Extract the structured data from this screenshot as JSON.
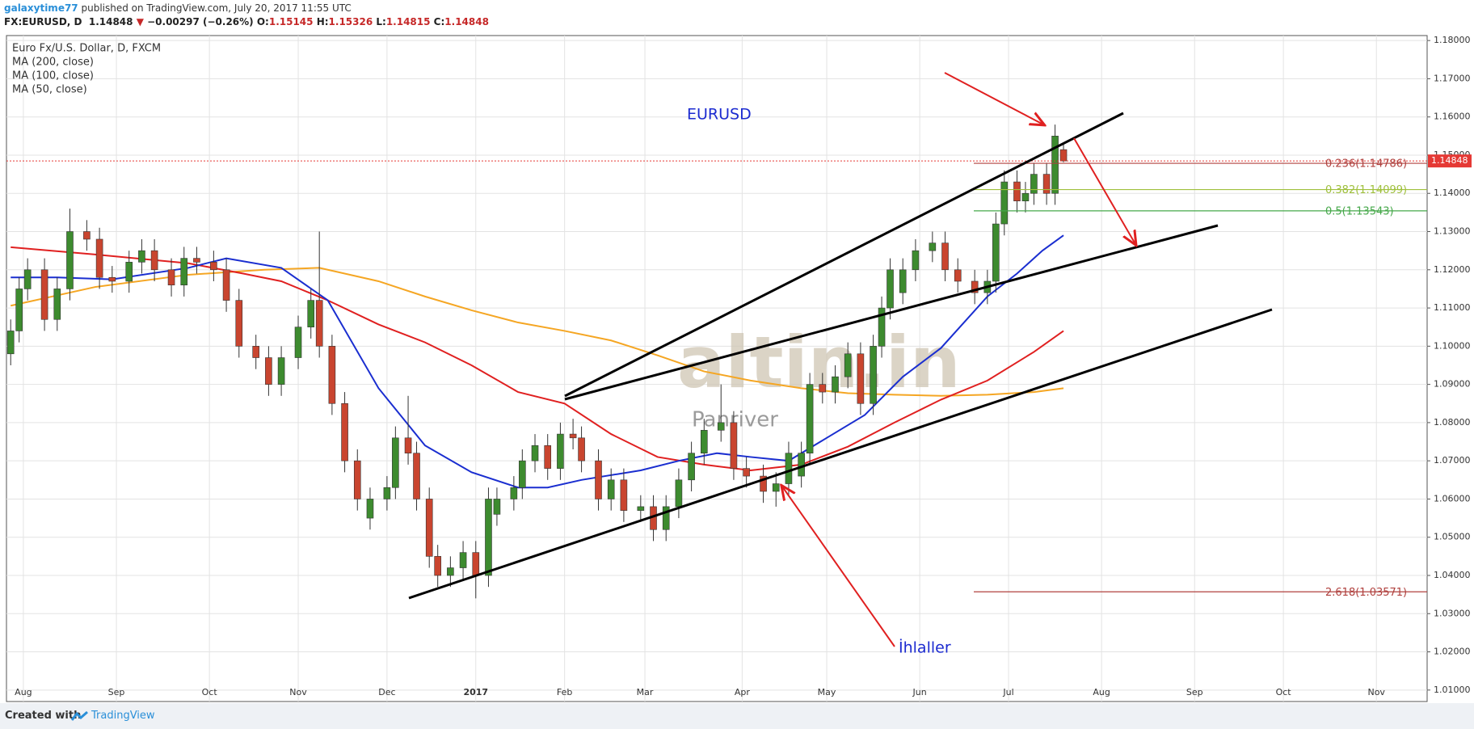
{
  "header": {
    "user": "galaxytime77",
    "published": "published on TradingView.com, July 20, 2017 11:55 UTC",
    "symbol": "FX:EURUSD, D",
    "price": "1.14848",
    "direction": "▼",
    "change": "−0.00297 (−0.26%)",
    "o_label": "O:",
    "o": "1.15145",
    "h_label": "H:",
    "h": "1.15326",
    "l_label": "L:",
    "l": "1.14815",
    "c_label": "C:",
    "c": "1.14848"
  },
  "footer": {
    "created_with": "Created with",
    "brand": "TradingView"
  },
  "chart_data": {
    "type": "candlestick",
    "title": "Euro Fx/U.S. Dollar, D, FXCM",
    "up_color": "#3d8b2f",
    "down_color": "#c9452f",
    "x": [
      -3,
      -1,
      1,
      5,
      8,
      11,
      15,
      18,
      21,
      25,
      28,
      31,
      35,
      38,
      41,
      45,
      48,
      51,
      55,
      58,
      61,
      65,
      68,
      70,
      73,
      76,
      79,
      82,
      86,
      88,
      91,
      93,
      96,
      98,
      101,
      104,
      107,
      110,
      112,
      116,
      118,
      121,
      124,
      127,
      130,
      132,
      136,
      139,
      142,
      146,
      149,
      152,
      155,
      158,
      161,
      165,
      168,
      171,
      175,
      178,
      181,
      184,
      186,
      189,
      192,
      195,
      198,
      201,
      203,
      205,
      208,
      211,
      215,
      218,
      221,
      225,
      228,
      230,
      232,
      235,
      237,
      239,
      242,
      244,
      246
    ],
    "open": [
      1.098,
      1.104,
      1.115,
      1.12,
      1.107,
      1.115,
      1.13,
      1.128,
      1.118,
      1.117,
      1.122,
      1.125,
      1.12,
      1.116,
      1.123,
      1.122,
      1.12,
      1.112,
      1.1,
      1.097,
      1.09,
      1.097,
      1.105,
      1.112,
      1.1,
      1.085,
      1.07,
      1.055,
      1.06,
      1.063,
      1.076,
      1.072,
      1.06,
      1.045,
      1.04,
      1.042,
      1.046,
      1.04,
      1.056,
      1.06,
      1.063,
      1.07,
      1.074,
      1.068,
      1.077,
      1.076,
      1.07,
      1.06,
      1.065,
      1.057,
      1.058,
      1.052,
      1.058,
      1.065,
      1.072,
      1.078,
      1.08,
      1.068,
      1.066,
      1.062,
      1.064,
      1.066,
      1.072,
      1.09,
      1.088,
      1.092,
      1.098,
      1.085,
      1.1,
      1.11,
      1.114,
      1.12,
      1.125,
      1.127,
      1.12,
      1.117,
      1.114,
      1.117,
      1.132,
      1.143,
      1.138,
      1.14,
      1.145,
      1.14,
      1.15145
    ],
    "high": [
      1.107,
      1.118,
      1.123,
      1.123,
      1.118,
      1.136,
      1.133,
      1.131,
      1.121,
      1.125,
      1.128,
      1.128,
      1.123,
      1.126,
      1.126,
      1.125,
      1.123,
      1.115,
      1.103,
      1.1,
      1.1,
      1.108,
      1.115,
      1.13,
      1.103,
      1.088,
      1.073,
      1.063,
      1.066,
      1.079,
      1.087,
      1.075,
      1.063,
      1.048,
      1.045,
      1.049,
      1.049,
      1.063,
      1.063,
      1.066,
      1.073,
      1.077,
      1.077,
      1.08,
      1.081,
      1.079,
      1.073,
      1.068,
      1.068,
      1.061,
      1.061,
      1.061,
      1.068,
      1.075,
      1.081,
      1.09,
      1.083,
      1.071,
      1.069,
      1.067,
      1.075,
      1.075,
      1.093,
      1.093,
      1.095,
      1.101,
      1.101,
      1.103,
      1.113,
      1.123,
      1.123,
      1.128,
      1.13,
      1.13,
      1.123,
      1.12,
      1.12,
      1.135,
      1.146,
      1.146,
      1.143,
      1.148,
      1.148,
      1.158,
      1.15326
    ],
    "low": [
      1.095,
      1.101,
      1.112,
      1.104,
      1.104,
      1.112,
      1.125,
      1.115,
      1.114,
      1.114,
      1.119,
      1.117,
      1.113,
      1.113,
      1.119,
      1.117,
      1.109,
      1.097,
      1.094,
      1.087,
      1.087,
      1.094,
      1.102,
      1.097,
      1.082,
      1.067,
      1.057,
      1.052,
      1.057,
      1.06,
      1.069,
      1.057,
      1.042,
      1.037,
      1.037,
      1.039,
      1.034,
      1.037,
      1.053,
      1.057,
      1.06,
      1.067,
      1.065,
      1.065,
      1.073,
      1.067,
      1.057,
      1.057,
      1.054,
      1.054,
      1.049,
      1.049,
      1.055,
      1.062,
      1.069,
      1.075,
      1.065,
      1.063,
      1.059,
      1.058,
      1.061,
      1.063,
      1.069,
      1.085,
      1.085,
      1.089,
      1.082,
      1.082,
      1.097,
      1.107,
      1.111,
      1.117,
      1.122,
      1.117,
      1.114,
      1.111,
      1.111,
      1.114,
      1.129,
      1.135,
      1.135,
      1.137,
      1.137,
      1.137,
      1.14815
    ],
    "close": [
      1.104,
      1.115,
      1.12,
      1.107,
      1.115,
      1.13,
      1.128,
      1.118,
      1.117,
      1.122,
      1.125,
      1.12,
      1.116,
      1.123,
      1.122,
      1.12,
      1.112,
      1.1,
      1.097,
      1.09,
      1.097,
      1.105,
      1.112,
      1.1,
      1.085,
      1.07,
      1.06,
      1.06,
      1.063,
      1.076,
      1.072,
      1.06,
      1.045,
      1.04,
      1.042,
      1.046,
      1.04,
      1.06,
      1.06,
      1.063,
      1.07,
      1.074,
      1.068,
      1.077,
      1.076,
      1.07,
      1.06,
      1.065,
      1.057,
      1.058,
      1.052,
      1.058,
      1.065,
      1.072,
      1.078,
      1.08,
      1.068,
      1.066,
      1.062,
      1.064,
      1.072,
      1.072,
      1.09,
      1.088,
      1.092,
      1.098,
      1.085,
      1.1,
      1.11,
      1.12,
      1.12,
      1.125,
      1.127,
      1.12,
      1.117,
      1.114,
      1.117,
      1.132,
      1.143,
      1.138,
      1.14,
      1.145,
      1.14,
      1.155,
      1.14848
    ],
    "moving_averages": [
      {
        "name": "MA (200, close)",
        "color": "#f5a623",
        "x": [
          -3,
          17,
          39,
          57,
          70,
          84,
          95,
          106,
          117,
          128,
          139,
          150,
          161,
          172,
          184,
          195,
          206,
          217,
          228,
          239,
          246
        ],
        "values": [
          1.1106,
          1.1155,
          1.1187,
          1.12,
          1.1205,
          1.117,
          1.113,
          1.1094,
          1.1062,
          1.104,
          1.1015,
          1.0976,
          1.0934,
          1.091,
          1.089,
          1.0877,
          1.0873,
          1.087,
          1.0873,
          1.088,
          1.089
        ]
      },
      {
        "name": "MA (100, close)",
        "color": "#e02020",
        "x": [
          -3,
          17,
          39,
          52,
          61,
          72,
          84,
          95,
          106,
          117,
          128,
          139,
          150,
          161,
          172,
          184,
          195,
          206,
          217,
          228,
          239,
          246
        ],
        "values": [
          1.1259,
          1.124,
          1.1217,
          1.119,
          1.117,
          1.112,
          1.1057,
          1.101,
          1.095,
          1.088,
          1.085,
          1.077,
          1.071,
          1.069,
          1.0675,
          1.069,
          1.0737,
          1.08,
          1.086,
          1.091,
          1.0985,
          1.104
        ]
      },
      {
        "name": "MA (50, close)",
        "color": "#1a2ed0",
        "x": [
          -3,
          8,
          21,
          39,
          48,
          61,
          72,
          84,
          95,
          106,
          117,
          124,
          132,
          146,
          155,
          164,
          172,
          181,
          190,
          199,
          208,
          217,
          228,
          235,
          241,
          246
        ],
        "values": [
          1.118,
          1.118,
          1.1175,
          1.1205,
          1.123,
          1.1205,
          1.112,
          1.089,
          1.074,
          1.067,
          1.063,
          1.063,
          1.065,
          1.0675,
          1.07,
          1.072,
          1.071,
          1.07,
          1.076,
          1.082,
          1.092,
          1.0995,
          1.113,
          1.119,
          1.125,
          1.129
        ]
      }
    ],
    "last_price": 1.14848,
    "last_price_color": "#e53935",
    "fib_levels": [
      {
        "label": "0.236(1.14786)",
        "value": 1.14786,
        "color": "#b0413e"
      },
      {
        "label": "0.382(1.14099)",
        "value": 1.14099,
        "color": "#9fc03c"
      },
      {
        "label": "0.5(1.13543)",
        "value": 1.13543,
        "color": "#46a84a"
      },
      {
        "label": "2.618(1.03571)",
        "value": 1.03571,
        "color": "#b0413e"
      }
    ],
    "annotations": [
      "EURUSD",
      "İhlaller"
    ],
    "watermark": [
      "altin.in",
      "Panriver"
    ],
    "xlim": [
      -4,
      332
    ],
    "xticks": [
      {
        "value": 0,
        "label": "Aug"
      },
      {
        "value": 22,
        "label": "Sep"
      },
      {
        "value": 44,
        "label": "Oct"
      },
      {
        "value": 65,
        "label": "Nov"
      },
      {
        "value": 86,
        "label": "Dec"
      },
      {
        "value": 107,
        "label": "2017"
      },
      {
        "value": 128,
        "label": "Feb"
      },
      {
        "value": 147,
        "label": "Mar"
      },
      {
        "value": 170,
        "label": "Apr"
      },
      {
        "value": 190,
        "label": "May"
      },
      {
        "value": 212,
        "label": "Jun"
      },
      {
        "value": 233,
        "label": "Jul"
      },
      {
        "value": 255,
        "label": "Aug"
      },
      {
        "value": 277,
        "label": "Sep"
      },
      {
        "value": 298,
        "label": "Oct"
      },
      {
        "value": 320,
        "label": "Nov"
      }
    ],
    "ylim": [
      1.007,
      1.1813
    ],
    "yticks": [
      {
        "value": 1.01,
        "label": "1.01000"
      },
      {
        "value": 1.02,
        "label": "1.02000"
      },
      {
        "value": 1.03,
        "label": "1.03000"
      },
      {
        "value": 1.04,
        "label": "1.04000"
      },
      {
        "value": 1.05,
        "label": "1.05000"
      },
      {
        "value": 1.06,
        "label": "1.06000"
      },
      {
        "value": 1.07,
        "label": "1.07000"
      },
      {
        "value": 1.08,
        "label": "1.08000"
      },
      {
        "value": 1.09,
        "label": "1.09000"
      },
      {
        "value": 1.1,
        "label": "1.10000"
      },
      {
        "value": 1.11,
        "label": "1.11000"
      },
      {
        "value": 1.12,
        "label": "1.12000"
      },
      {
        "value": 1.13,
        "label": "1.13000"
      },
      {
        "value": 1.14,
        "label": "1.14000"
      },
      {
        "value": 1.15,
        "label": "1.15000"
      },
      {
        "value": 1.16,
        "label": "1.16000"
      },
      {
        "value": 1.17,
        "label": "1.17000"
      },
      {
        "value": 1.18,
        "label": "1.18000"
      }
    ],
    "grid": true
  }
}
